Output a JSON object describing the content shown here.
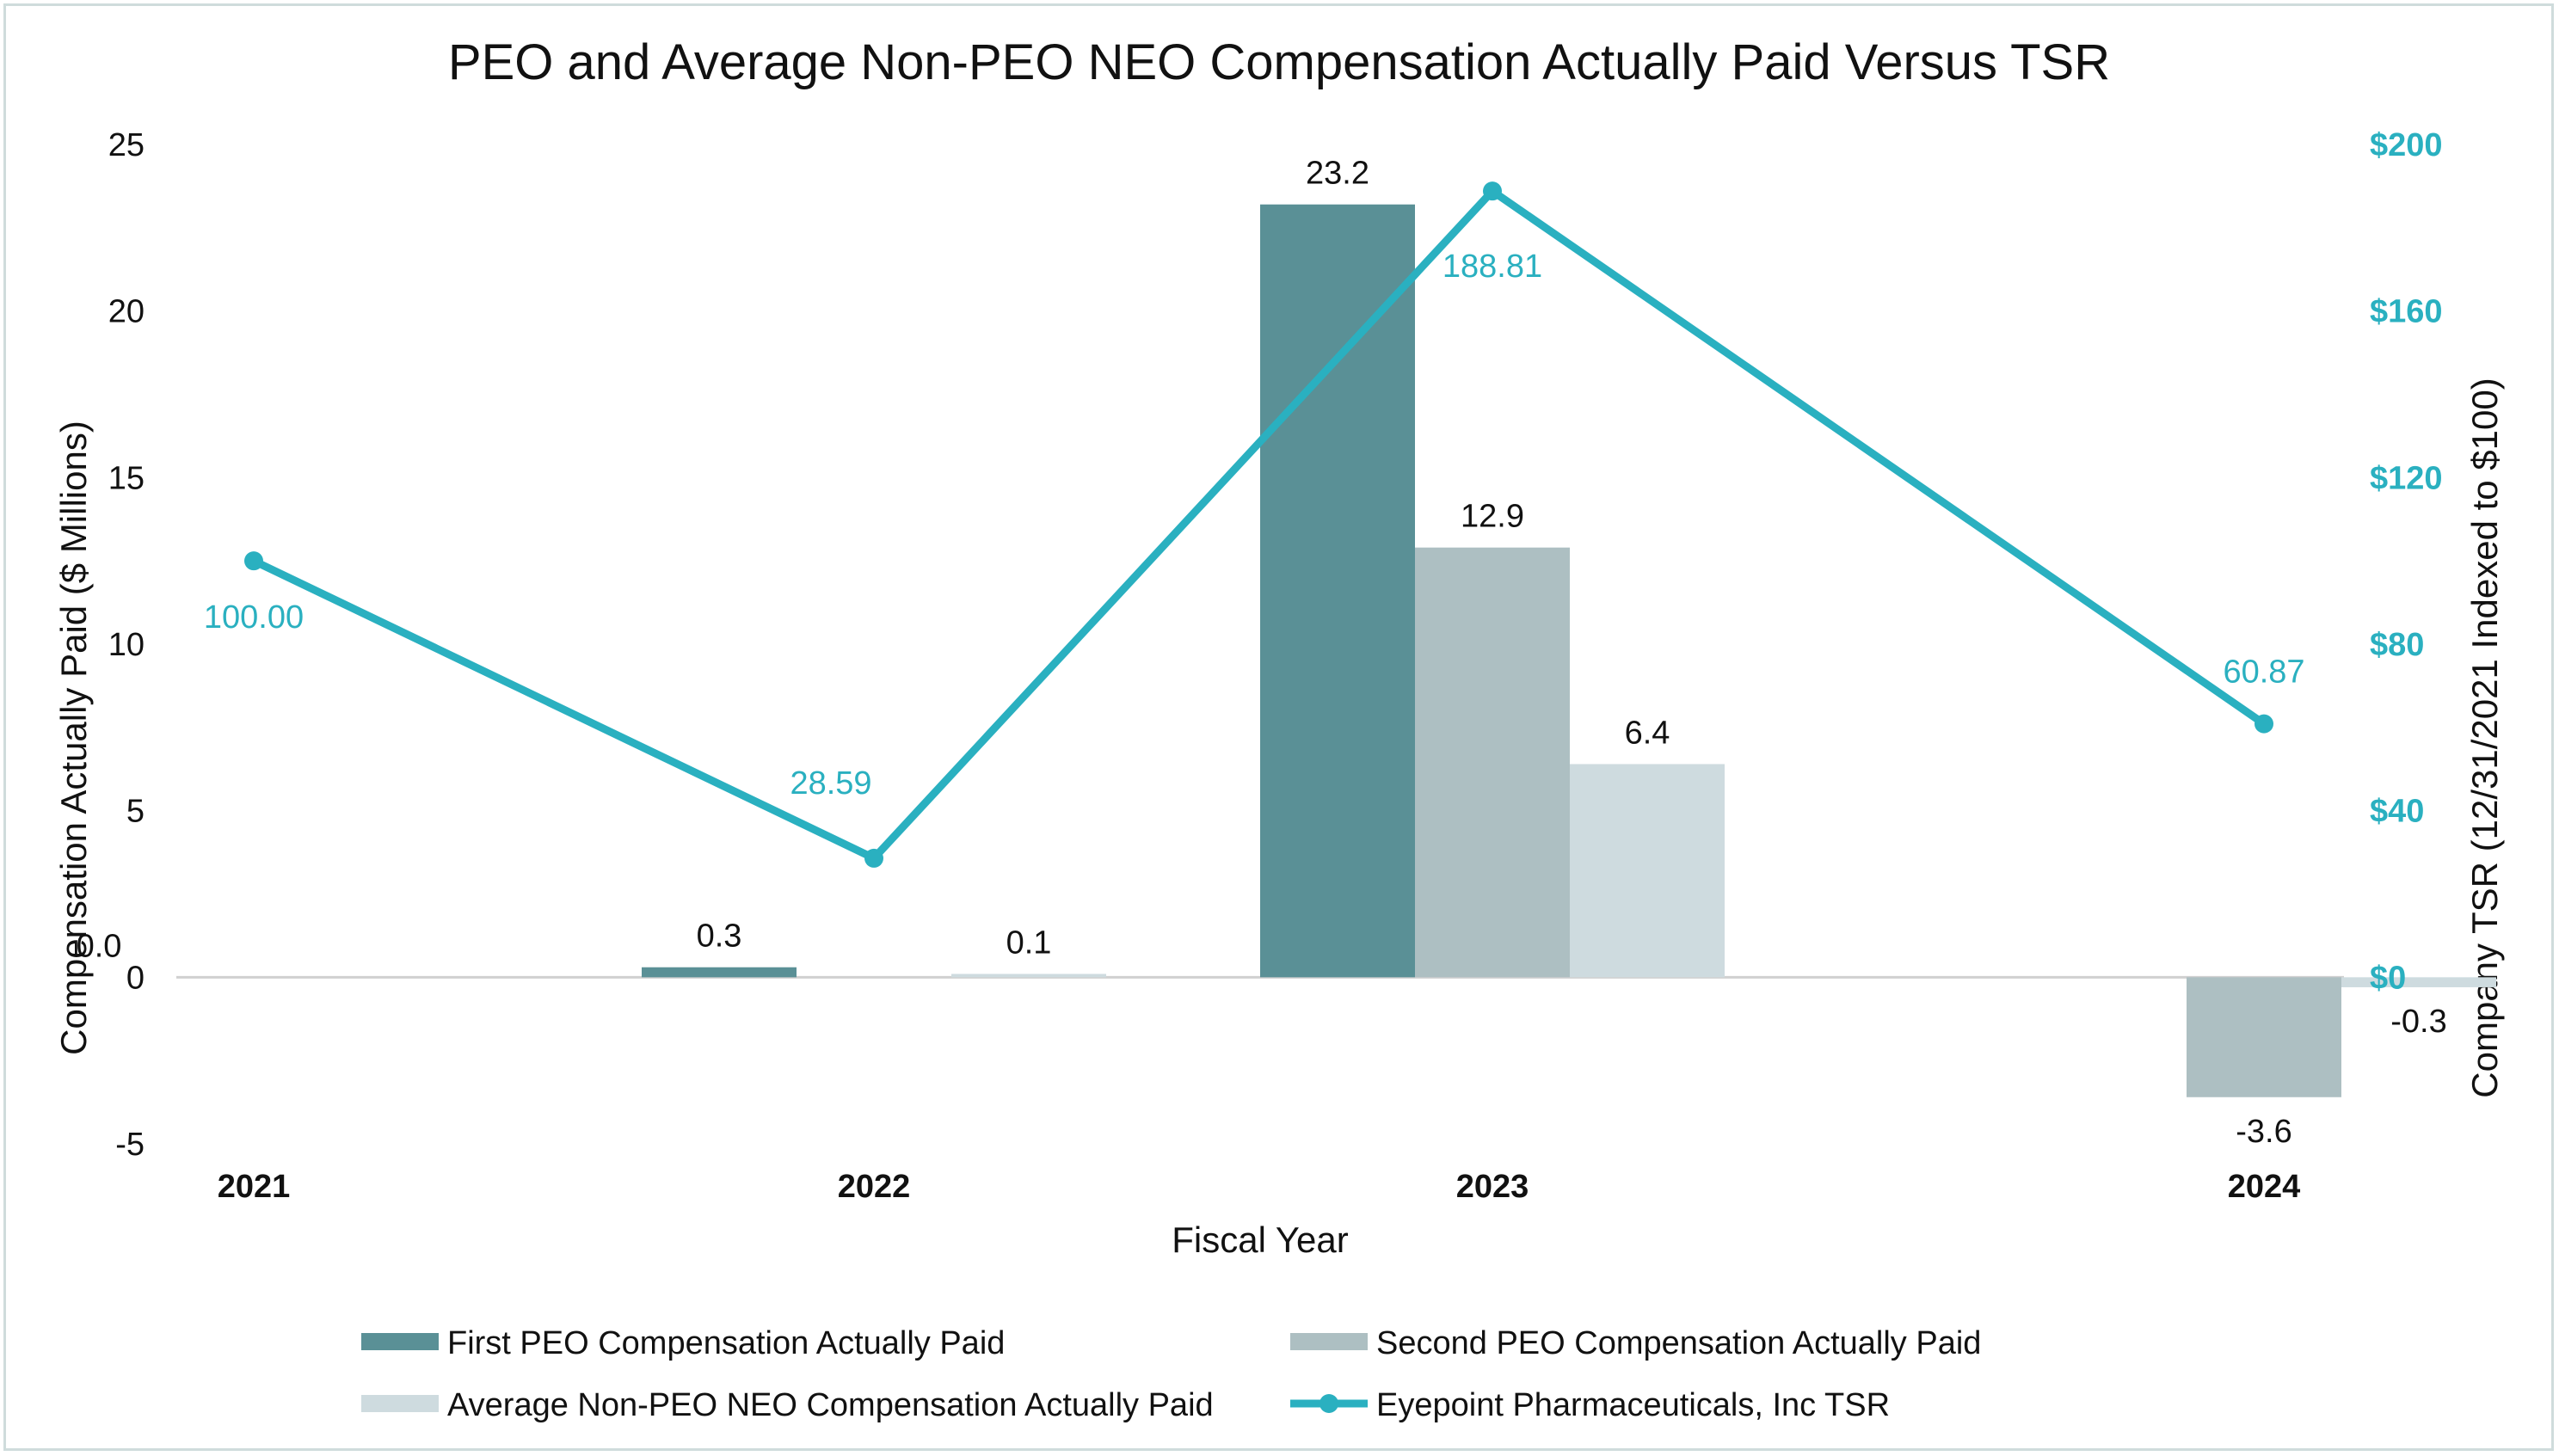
{
  "chart_data": {
    "type": "bar+line",
    "title": "PEO and Average Non-PEO NEO Compensation Actually Paid Versus TSR",
    "xlabel": "Fiscal Year",
    "ylabel": "Compensation Actually Paid ($ Millions)",
    "y2label": "Company TSR (12/31/2021 Indexed to $100)",
    "categories": [
      "2021",
      "2022",
      "2023",
      "2024"
    ],
    "ylim": [
      -5,
      25
    ],
    "yticks": [
      "-5",
      "0",
      "5",
      "10",
      "15",
      "20",
      "25"
    ],
    "y2lim": [
      0,
      200
    ],
    "y2ticks": [
      "$0",
      "$40",
      "$80",
      "$120",
      "$160",
      "$200"
    ],
    "series": [
      {
        "name": "First PEO Compensation Actually Paid",
        "kind": "bar",
        "color": "#5a9096",
        "values": [
          0.0,
          0.3,
          23.2,
          null
        ],
        "labels": [
          "0.0",
          "0.3",
          "23.2",
          ""
        ]
      },
      {
        "name": "Second PEO Compensation Actually Paid",
        "kind": "bar",
        "color": "#adbfc2",
        "values": [
          null,
          null,
          12.9,
          -3.6
        ],
        "labels": [
          "",
          "",
          "12.9",
          "-3.6"
        ]
      },
      {
        "name": "Average Non-PEO NEO Compensation Actually Paid",
        "kind": "bar",
        "color": "#ceDbdf",
        "values": [
          null,
          0.1,
          6.4,
          -0.3
        ],
        "labels": [
          "",
          "0.1",
          "6.4",
          "-0.3"
        ]
      },
      {
        "name": "Eyepoint Pharmaceuticals, Inc TSR",
        "kind": "line",
        "axis": "right",
        "color": "#2ab0c0",
        "values": [
          100.0,
          28.59,
          188.81,
          60.87
        ],
        "labels": [
          "100.00",
          "28.59",
          "188.81",
          "60.87"
        ]
      }
    ],
    "legend_position": "bottom"
  }
}
